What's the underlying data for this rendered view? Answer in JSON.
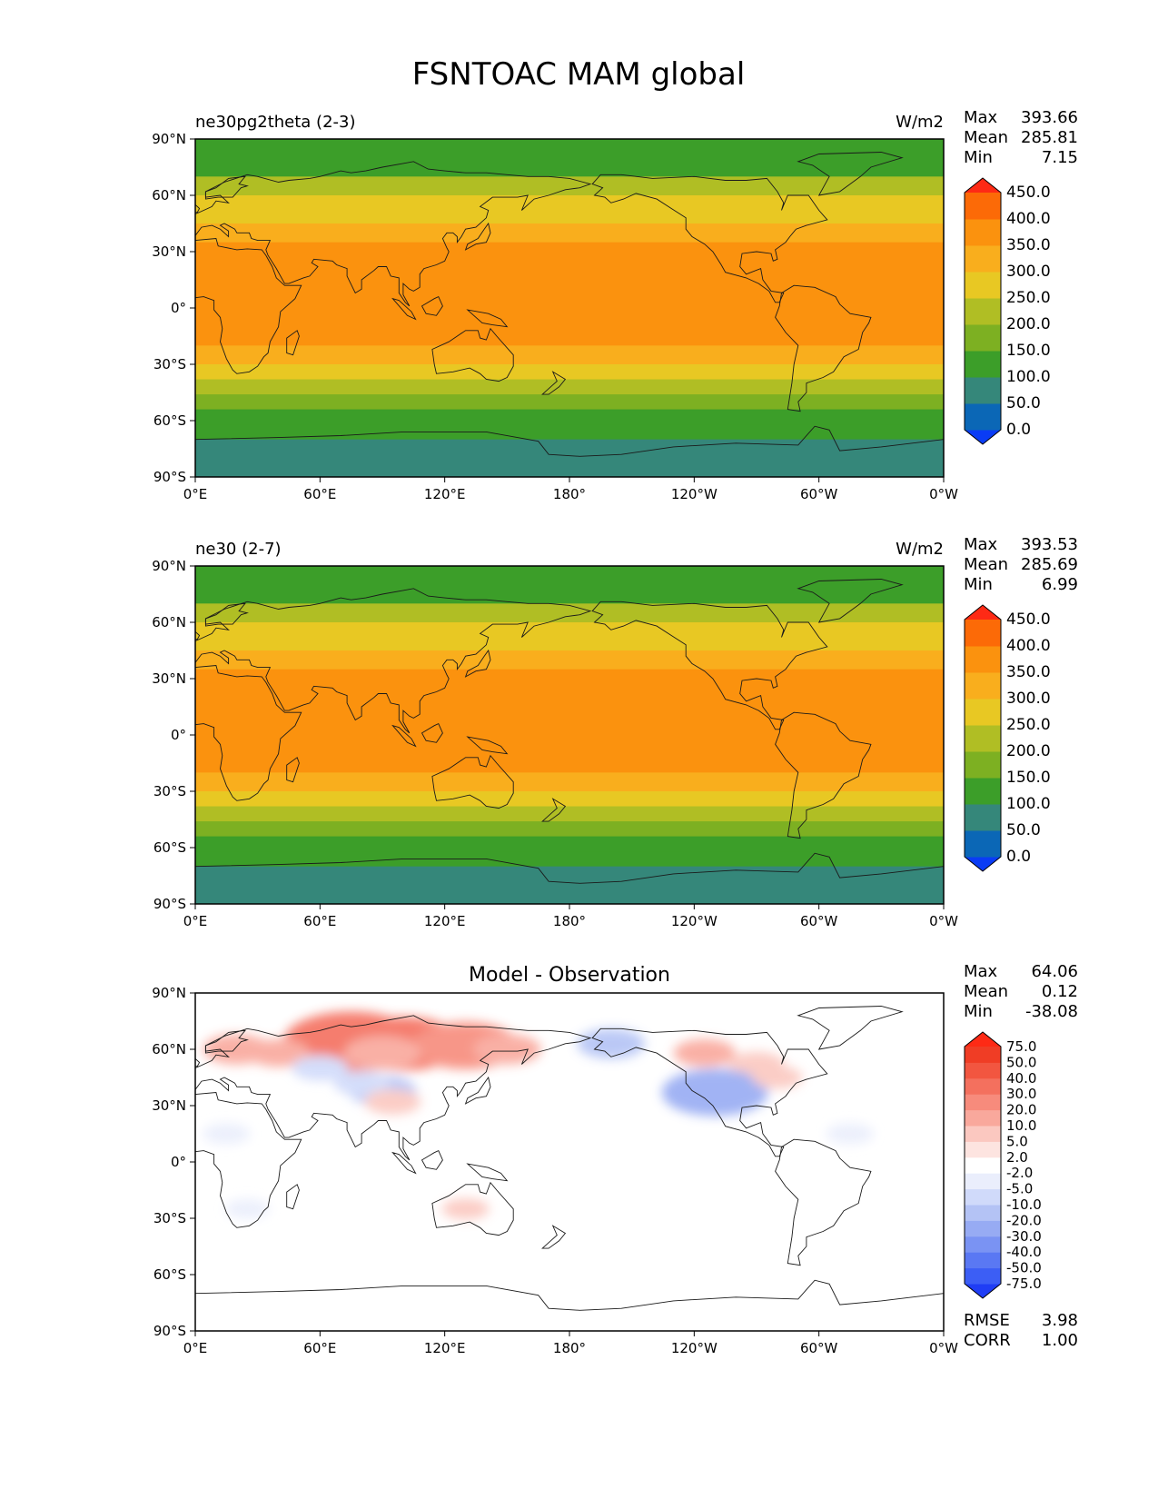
{
  "figure": {
    "title": "FSNTOAC MAM global"
  },
  "chart_data": [
    {
      "type": "heatmap",
      "projection": "equirectangular (PlateCarree, central longitude 180)",
      "title_left": "ne30pg2theta (2-3)",
      "title_right": "W/m2",
      "stats": {
        "max_label": "Max",
        "max": "393.66",
        "mean_label": "Mean",
        "mean": "285.81",
        "min_label": "Min",
        "min": "7.15"
      },
      "colorbar": {
        "levels": [
          "0.0",
          "50.0",
          "100.0",
          "150.0",
          "200.0",
          "250.0",
          "300.0",
          "350.0",
          "400.0",
          "450.0"
        ],
        "colors": [
          "#0a3cf5",
          "#0b67b6",
          "#35877a",
          "#3c9e29",
          "#7db022",
          "#b0be24",
          "#e8c823",
          "#f9ae1d",
          "#fb920e",
          "#fc6a07",
          "#fe2a15"
        ],
        "extend": "both"
      },
      "lat_bands": [
        {
          "from": 90,
          "to": 70,
          "value": 120
        },
        {
          "from": 70,
          "to": 60,
          "value": 225
        },
        {
          "from": 60,
          "to": 45,
          "value": 275
        },
        {
          "from": 45,
          "to": 35,
          "value": 310
        },
        {
          "from": 35,
          "to": 10,
          "value": 370
        },
        {
          "from": 10,
          "to": -10,
          "value": 385
        },
        {
          "from": -10,
          "to": -20,
          "value": 370
        },
        {
          "from": -20,
          "to": -30,
          "value": 330
        },
        {
          "from": -30,
          "to": -38,
          "value": 285
        },
        {
          "from": -38,
          "to": -46,
          "value": 225
        },
        {
          "from": -46,
          "to": -54,
          "value": 175
        },
        {
          "from": -54,
          "to": -62,
          "value": 140
        },
        {
          "from": -62,
          "to": -70,
          "value": 110
        },
        {
          "from": -70,
          "to": -90,
          "value": 60
        }
      ],
      "xlabel": "",
      "ylabel": "",
      "xticks": [
        "0°E",
        "60°E",
        "120°E",
        "180°",
        "120°W",
        "60°W",
        "0°W"
      ],
      "yticks": [
        "90°N",
        "60°N",
        "30°N",
        "0°",
        "30°S",
        "60°S",
        "90°S"
      ],
      "lon_range": [
        0,
        360
      ],
      "lat_range": [
        -90,
        90
      ]
    },
    {
      "type": "heatmap",
      "projection": "equirectangular (PlateCarree, central longitude 180)",
      "title_left": "ne30 (2-7)",
      "title_right": "W/m2",
      "stats": {
        "max_label": "Max",
        "max": "393.53",
        "mean_label": "Mean",
        "mean": "285.69",
        "min_label": "Min",
        "min": "6.99"
      },
      "colorbar": {
        "levels": [
          "0.0",
          "50.0",
          "100.0",
          "150.0",
          "200.0",
          "250.0",
          "300.0",
          "350.0",
          "400.0",
          "450.0"
        ],
        "colors": [
          "#0a3cf5",
          "#0b67b6",
          "#35877a",
          "#3c9e29",
          "#7db022",
          "#b0be24",
          "#e8c823",
          "#f9ae1d",
          "#fb920e",
          "#fc6a07",
          "#fe2a15"
        ],
        "extend": "both"
      },
      "lat_bands": [
        {
          "from": 90,
          "to": 70,
          "value": 120
        },
        {
          "from": 70,
          "to": 60,
          "value": 225
        },
        {
          "from": 60,
          "to": 45,
          "value": 275
        },
        {
          "from": 45,
          "to": 35,
          "value": 310
        },
        {
          "from": 35,
          "to": 10,
          "value": 370
        },
        {
          "from": 10,
          "to": -10,
          "value": 385
        },
        {
          "from": -10,
          "to": -20,
          "value": 370
        },
        {
          "from": -20,
          "to": -30,
          "value": 330
        },
        {
          "from": -30,
          "to": -38,
          "value": 285
        },
        {
          "from": -38,
          "to": -46,
          "value": 225
        },
        {
          "from": -46,
          "to": -54,
          "value": 175
        },
        {
          "from": -54,
          "to": -62,
          "value": 140
        },
        {
          "from": -62,
          "to": -70,
          "value": 110
        },
        {
          "from": -70,
          "to": -90,
          "value": 60
        }
      ],
      "xlabel": "",
      "ylabel": "",
      "xticks": [
        "0°E",
        "60°E",
        "120°E",
        "180°",
        "120°W",
        "60°W",
        "0°W"
      ],
      "yticks": [
        "90°N",
        "60°N",
        "30°N",
        "0°",
        "30°S",
        "60°S",
        "90°S"
      ],
      "lon_range": [
        0,
        360
      ],
      "lat_range": [
        -90,
        90
      ]
    },
    {
      "type": "heatmap",
      "projection": "equirectangular (PlateCarree, central longitude 180)",
      "title_center": "Model - Observation",
      "stats": {
        "max_label": "Max",
        "max": "64.06",
        "mean_label": "Mean",
        "mean": "0.12",
        "min_label": "Min",
        "min": "-38.08"
      },
      "metrics": {
        "rmse_label": "RMSE",
        "rmse": "3.98",
        "corr_label": "CORR",
        "corr": "1.00"
      },
      "colorbar": {
        "levels": [
          "-75.0",
          "-50.0",
          "-40.0",
          "-30.0",
          "-20.0",
          "-10.0",
          "-5.0",
          "-2.0",
          "2.0",
          "5.0",
          "10.0",
          "20.0",
          "30.0",
          "40.0",
          "50.0",
          "75.0"
        ],
        "colors": [
          "#1f3df5",
          "#3c5ef5",
          "#5a78f3",
          "#7a93f3",
          "#97abf3",
          "#b4c3f5",
          "#d0dafa",
          "#eaeefc",
          "#ffffff",
          "#fde4e0",
          "#fbc8c0",
          "#f9a89c",
          "#f78b7c",
          "#f4705e",
          "#f25640",
          "#f03d25",
          "#fe2a15"
        ],
        "extend": "both"
      },
      "anomalies": [
        {
          "lon": 75,
          "lat": 64,
          "value": 35
        },
        {
          "lon": 100,
          "lat": 63,
          "value": 30
        },
        {
          "lon": 130,
          "lat": 62,
          "value": 25
        },
        {
          "lon": 90,
          "lat": 58,
          "value": 15
        },
        {
          "lon": 20,
          "lat": 60,
          "value": 12
        },
        {
          "lon": 40,
          "lat": 58,
          "value": 10
        },
        {
          "lon": 150,
          "lat": 60,
          "value": 12
        },
        {
          "lon": 245,
          "lat": 58,
          "value": 10
        },
        {
          "lon": 270,
          "lat": 52,
          "value": 8
        },
        {
          "lon": 60,
          "lat": 50,
          "value": -8
        },
        {
          "lon": 90,
          "lat": 38,
          "value": -12
        },
        {
          "lon": 80,
          "lat": 42,
          "value": -8
        },
        {
          "lon": 200,
          "lat": 63,
          "value": -12
        },
        {
          "lon": 250,
          "lat": 37,
          "value": -25
        },
        {
          "lon": 15,
          "lat": 15,
          "value": -5
        },
        {
          "lon": 95,
          "lat": 32,
          "value": 8
        },
        {
          "lon": 130,
          "lat": -25,
          "value": 5
        },
        {
          "lon": 25,
          "lat": -25,
          "value": -4
        },
        {
          "lon": 315,
          "lat": 15,
          "value": -5
        },
        {
          "lon": 280,
          "lat": 45,
          "value": 6
        }
      ],
      "xlabel": "",
      "ylabel": "",
      "xticks": [
        "0°E",
        "60°E",
        "120°E",
        "180°",
        "120°W",
        "60°W",
        "0°W"
      ],
      "yticks": [
        "90°N",
        "60°N",
        "30°N",
        "0°",
        "30°S",
        "60°S",
        "90°S"
      ],
      "lon_range": [
        0,
        360
      ],
      "lat_range": [
        -90,
        90
      ]
    }
  ]
}
